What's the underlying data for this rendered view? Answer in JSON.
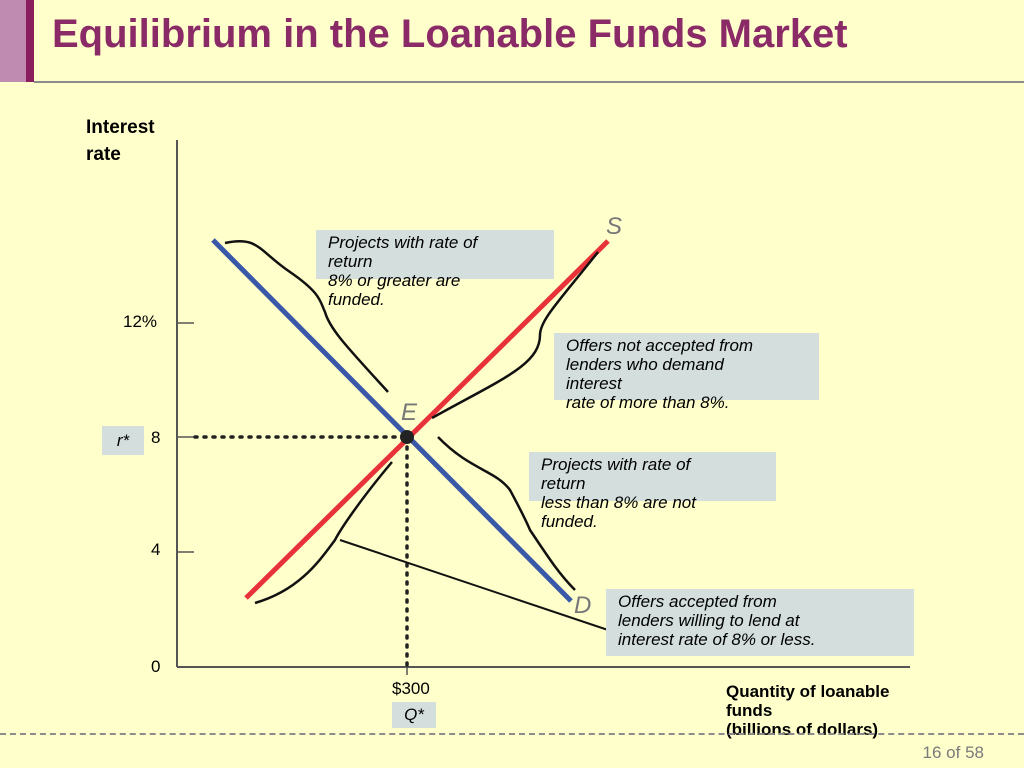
{
  "slide": {
    "title": "Equilibrium in the Loanable Funds Market",
    "page": "16 of 58"
  },
  "colors": {
    "title": "#8a2a66",
    "supply": "#e8323a",
    "demand": "#3a58a8",
    "callout_bg": "#d3dedd",
    "background": "#ffffcc"
  },
  "axes": {
    "y_title_line1": "Interest",
    "y_title_line2": "rate",
    "x_title_line1": "Quantity of loanable",
    "x_title_line2": "funds",
    "x_title_line3": "(billions of dollars)",
    "y_ticks": [
      "12%",
      "8",
      "4",
      "0"
    ],
    "x_tick": "$300"
  },
  "labels": {
    "r_star": "r*",
    "q_star": "Q*",
    "supply": "S",
    "demand": "D",
    "equilibrium": "E"
  },
  "callouts": {
    "funded": [
      "Projects with rate of",
      "return",
      "8% or greater are",
      "funded."
    ],
    "not_accepted": [
      "Offers not accepted from",
      "lenders who demand",
      "interest",
      "rate of more than 8%."
    ],
    "not_funded": [
      "Projects with rate of",
      "return",
      "less than 8% are not",
      "funded."
    ],
    "accepted": [
      "Offers accepted from",
      "lenders willing to lend at",
      "interest rate of 8% or less."
    ]
  },
  "chart_data": {
    "type": "line",
    "xlabel": "Quantity of loanable funds (billions of dollars)",
    "ylabel": "Interest rate",
    "y_ticks": [
      0,
      4,
      8,
      12
    ],
    "equilibrium": {
      "x": 300,
      "y": 8
    },
    "series": [
      {
        "name": "S",
        "slope": "upward"
      },
      {
        "name": "D",
        "slope": "downward"
      }
    ]
  }
}
